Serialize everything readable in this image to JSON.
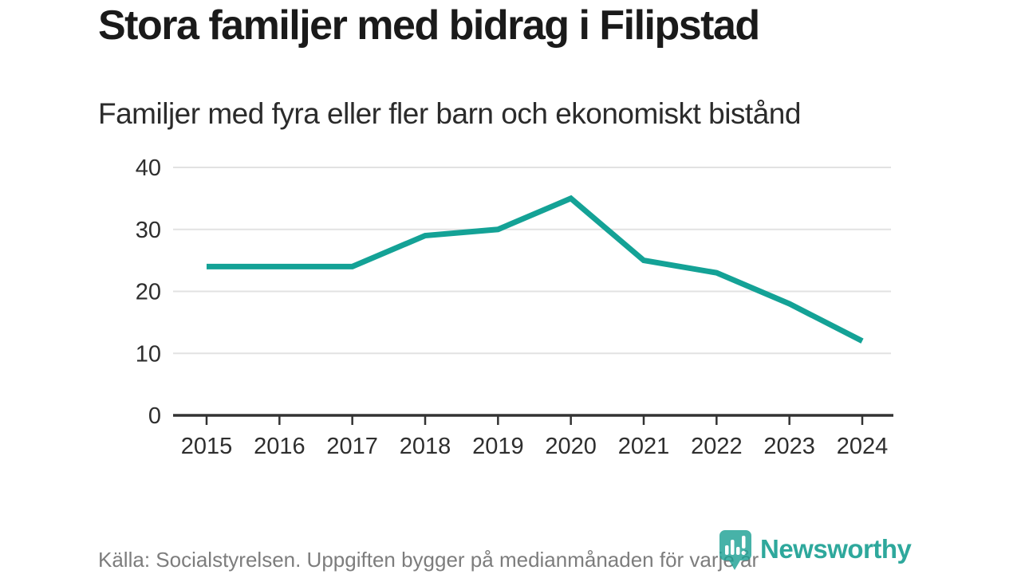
{
  "header": {
    "title": "Stora familjer med bidrag i Filipstad",
    "subtitle": "Familjer med fyra eller fler barn och ekonomiskt bistånd"
  },
  "chart_data": {
    "type": "line",
    "x": [
      "2015",
      "2016",
      "2017",
      "2018",
      "2019",
      "2020",
      "2021",
      "2022",
      "2023",
      "2024"
    ],
    "values": [
      24,
      24,
      24,
      29,
      30,
      35,
      25,
      23,
      18,
      12
    ],
    "title": "Stora familjer med bidrag i Filipstad",
    "subtitle": "Familjer med fyra eller fler barn och ekonomiskt bistånd",
    "xlabel": "",
    "ylabel": "",
    "ylim": [
      0,
      40
    ],
    "yticks": [
      0,
      10,
      20,
      30,
      40
    ],
    "grid": "horizontal",
    "legend": "none",
    "line_color": "#14a296",
    "axis_color": "#333333",
    "grid_color": "#e2e2e2",
    "tick_label_color": "#2e2e2e"
  },
  "footer": {
    "source": "Källa: Socialstyrelsen. Uppgiften bygger på medianmånaden för varje år"
  },
  "logo": {
    "name": "Newsworthy",
    "color": "#1da194"
  }
}
